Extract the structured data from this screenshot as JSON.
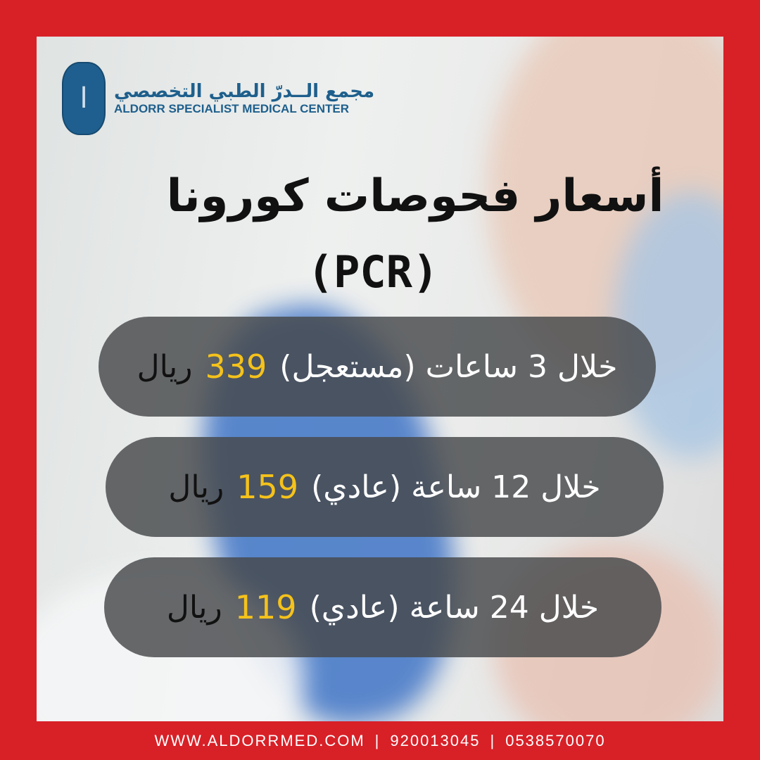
{
  "brand": {
    "name_ar": "مجمع الــدرّ الطبي التخصصي",
    "name_en": "ALDORR SPECIALIST MEDICAL CENTER",
    "color": "#1e5f8c"
  },
  "title": {
    "line1": "أسعار فحوصات كورونا",
    "line2": "(PCR)"
  },
  "prices": [
    {
      "label": "خلال 3 ساعات (مستعجل)",
      "price": "339",
      "currency": "ريال"
    },
    {
      "label": "خلال 12 ساعة (عادي)",
      "price": "159",
      "currency": "ريال"
    },
    {
      "label": "خلال 24 ساعة (عادي)",
      "price": "119",
      "currency": "ريال"
    }
  ],
  "footer": {
    "website": "WWW.ALDORRMED.COM",
    "phone1": "920013045",
    "phone2": "0538570070",
    "separator": "|"
  },
  "colors": {
    "frame": "#d82027",
    "price": "#f5c21b",
    "pill": "#46484a"
  }
}
